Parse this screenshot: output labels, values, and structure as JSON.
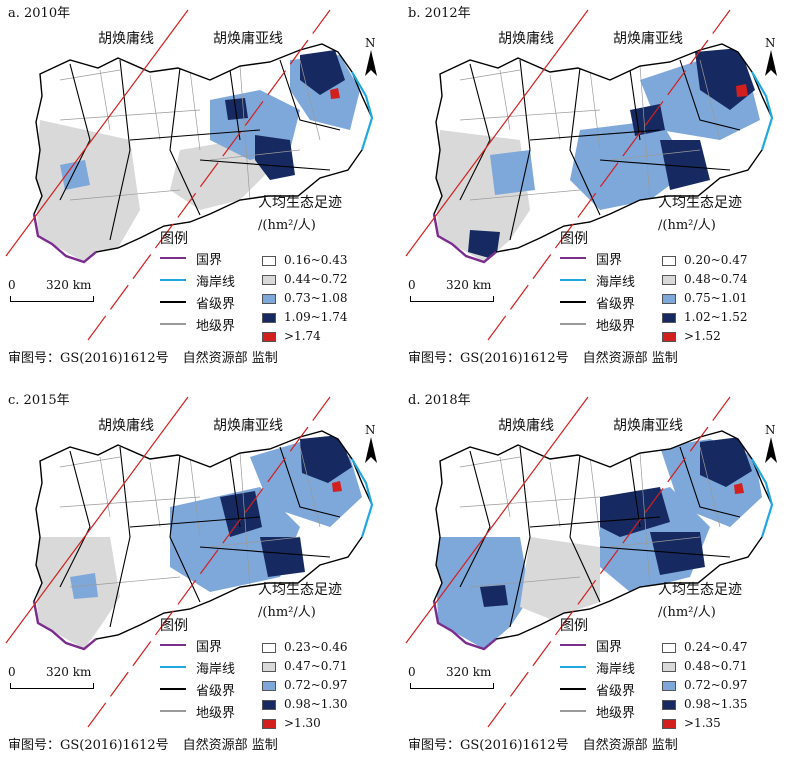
{
  "map_lines": {
    "hu_line_label": "胡焕庸线",
    "hu_asia_line_label": "胡焕庸亚线"
  },
  "north_label": "N",
  "legend": {
    "title": "图例",
    "items": [
      {
        "label": "国界",
        "color": "#7b2d8e"
      },
      {
        "label": "海岸线",
        "color": "#21a8e0"
      },
      {
        "label": "省级界",
        "color": "#000000"
      },
      {
        "label": "地级界",
        "color": "#9a9a9a"
      }
    ]
  },
  "eco_legend_title": "人均生态足迹",
  "eco_legend_unit": "/(hm²/人)",
  "scale": {
    "zero": "0",
    "distance": "320 km"
  },
  "review_number": "审图号：GS(2016)1612号",
  "publisher": "自然资源部 监制",
  "class_colors": [
    "#ffffff",
    "#d9d9d9",
    "#7ea7da",
    "#162a61",
    "#d2201f"
  ],
  "panels": [
    {
      "title": "a. 2010年",
      "classes": [
        "0.16~0.43",
        "0.44~0.72",
        "0.73~1.08",
        "1.09~1.74",
        ">1.74"
      ]
    },
    {
      "title": "b. 2012年",
      "classes": [
        "0.20~0.47",
        "0.48~0.74",
        "0.75~1.01",
        "1.02~1.52",
        ">1.52"
      ]
    },
    {
      "title": "c. 2015年",
      "classes": [
        "0.23~0.46",
        "0.47~0.71",
        "0.72~0.97",
        "0.98~1.30",
        ">1.30"
      ]
    },
    {
      "title": "d. 2018年",
      "classes": [
        "0.24~0.47",
        "0.48~0.71",
        "0.72~0.97",
        "0.98~1.35",
        ">1.35"
      ]
    }
  ]
}
